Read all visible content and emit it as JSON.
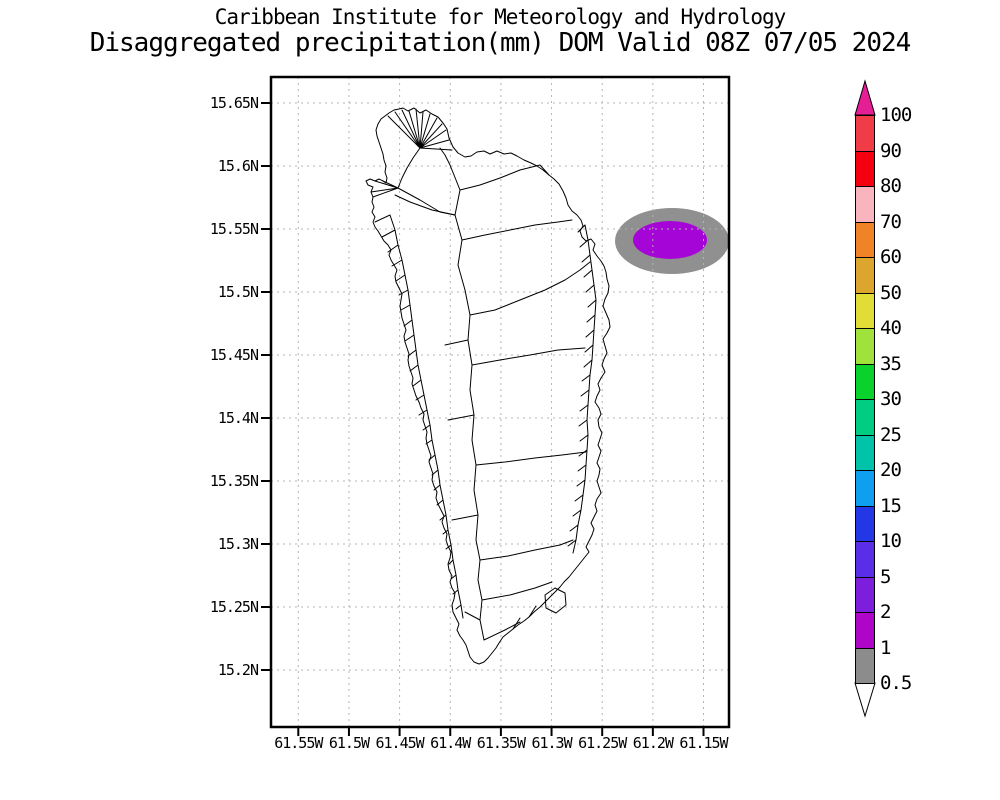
{
  "title": {
    "line1": "Caribbean Institute for Meteorology and Hydrology",
    "line2": "Disaggregated precipitation(mm) DOM Valid 08Z 07/05 2024"
  },
  "map": {
    "region": "Dominica (DOM)",
    "y_axis_labels": [
      "15.65N",
      "15.6N",
      "15.55N",
      "15.5N",
      "15.45N",
      "15.4N",
      "15.35N",
      "15.3N",
      "15.25N",
      "15.2N"
    ],
    "x_axis_labels": [
      "61.55W",
      "61.5W",
      "61.45W",
      "61.4W",
      "61.35W",
      "61.3W",
      "61.25W",
      "61.2W",
      "61.15W"
    ],
    "grid_color": "#b4b4b4",
    "coastline_color": "#000000"
  },
  "colorbar": {
    "units": "mm",
    "tick_labels": [
      "100",
      "90",
      "80",
      "70",
      "60",
      "50",
      "40",
      "35",
      "30",
      "25",
      "20",
      "15",
      "10",
      "5",
      "2",
      "1",
      "0.5"
    ],
    "segment_colors_top_to_bottom": [
      "#F03C46",
      "#F5000F",
      "#FAB4BE",
      "#F08228",
      "#DCA52D",
      "#E2DC37",
      "#A0E13C",
      "#0AD22D",
      "#00CD82",
      "#00C3AA",
      "#0F9FF0",
      "#2337E6",
      "#5A2DE6",
      "#7D1EDC",
      "#AF05C8",
      "#8C8C8C"
    ],
    "above_max_color": "#E61E96",
    "below_min_color": "#FFFFFF"
  },
  "precipitation_overlay": {
    "outer_region": {
      "value_range_mm": "0.5-1",
      "color": "#909090",
      "approx_center": "61.18W 15.54N"
    },
    "inner_region": {
      "value_range_mm": "1-2",
      "color": "#A505D7"
    }
  }
}
